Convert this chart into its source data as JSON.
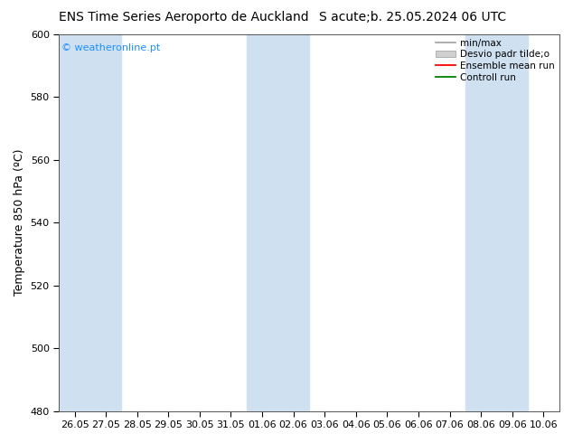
{
  "title1": "ENS Time Series Aeroporto de Auckland",
  "title2": "S acute;b. 25.05.2024 06 UTC",
  "ylabel": "Temperature 850 hPa (ºC)",
  "ylim": [
    480,
    600
  ],
  "yticks": [
    480,
    500,
    520,
    540,
    560,
    580,
    600
  ],
  "x_labels": [
    "26.05",
    "27.05",
    "28.05",
    "29.05",
    "30.05",
    "31.05",
    "01.06",
    "02.06",
    "03.06",
    "04.06",
    "05.06",
    "06.06",
    "07.06",
    "08.06",
    "09.06",
    "10.06"
  ],
  "shaded_indices": [
    0,
    1,
    6,
    7,
    13,
    14
  ],
  "band_color": "#cfe0f0",
  "background_color": "#ffffff",
  "legend_entries": [
    "min/max",
    "Desvio padr tilde;o",
    "Ensemble mean run",
    "Controll run"
  ],
  "legend_colors_line": [
    "#a0a0a0",
    "#c0c0c0",
    "#ff0000",
    "#008000"
  ],
  "watermark": "© weatheronline.pt",
  "watermark_color": "#1e90ff",
  "title_fontsize": 10,
  "tick_fontsize": 8,
  "ylabel_fontsize": 9,
  "legend_fontsize": 7.5
}
